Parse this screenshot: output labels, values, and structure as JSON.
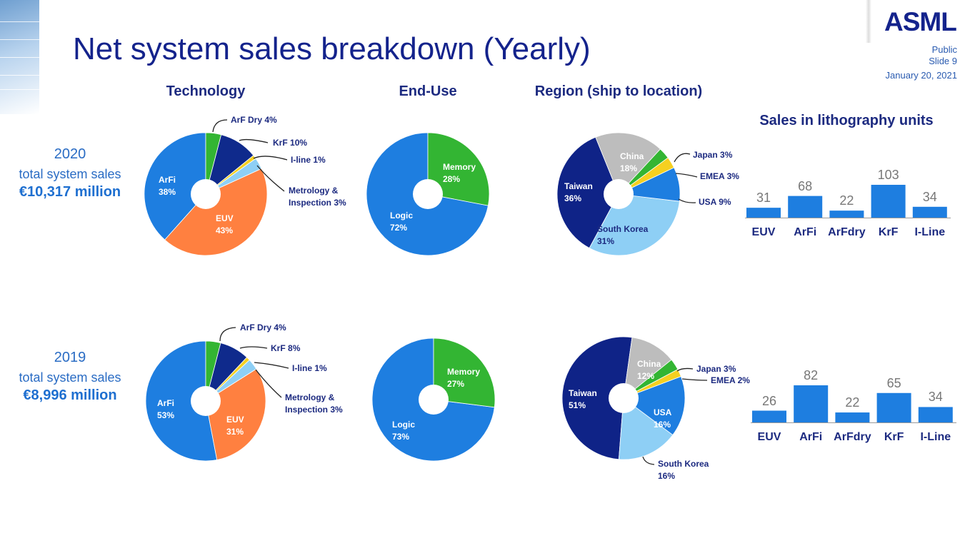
{
  "header": {
    "title": "Net system sales breakdown (Yearly)",
    "logo": "ASML",
    "classification": "Public",
    "slide": "Slide 9",
    "date": "January 20, 2021"
  },
  "section_headers": {
    "technology": "Technology",
    "end_use": "End-Use",
    "region": "Region (ship to location)"
  },
  "years": [
    {
      "year": "2020",
      "caption": "total system sales",
      "amount": "€10,317 million"
    },
    {
      "year": "2019",
      "caption": "total system sales",
      "amount": "€8,996 million"
    }
  ],
  "colors": {
    "title": "#14238c",
    "accent": "#1e6fd0"
  },
  "chart_data": [
    {
      "type": "pie",
      "title": "Technology",
      "year": "2020",
      "start": 0,
      "slices": [
        {
          "label": "ArF Dry",
          "value": 4,
          "color": "#33b533"
        },
        {
          "label": "KrF",
          "value": 10,
          "color": "#0f2a8c"
        },
        {
          "label": "I-line",
          "value": 1,
          "color": "#f5d020"
        },
        {
          "label": "Metrology & Inspection",
          "value": 3,
          "color": "#8ecff5"
        },
        {
          "label": "EUV",
          "value": 43,
          "color": "#ff8040"
        },
        {
          "label": "ArFi",
          "value": 38,
          "color": "#1e7ee0"
        }
      ]
    },
    {
      "type": "pie",
      "title": "End-Use",
      "year": "2020",
      "start": 0,
      "slices": [
        {
          "label": "Memory",
          "value": 28,
          "color": "#33b533"
        },
        {
          "label": "Logic",
          "value": 72,
          "color": "#1e7ee0"
        }
      ]
    },
    {
      "type": "pie",
      "title": "Region (ship to location)",
      "year": "2020",
      "start": -22,
      "slices": [
        {
          "label": "China",
          "value": 18,
          "color": "#bdbdbd"
        },
        {
          "label": "Japan",
          "value": 3,
          "color": "#33b533"
        },
        {
          "label": "EMEA",
          "value": 3,
          "color": "#f5d020"
        },
        {
          "label": "USA",
          "value": 9,
          "color": "#1e7ee0"
        },
        {
          "label": "South Korea",
          "value": 31,
          "color": "#8ecff5"
        },
        {
          "label": "Taiwan",
          "value": 36,
          "color": "#0f2387"
        }
      ]
    },
    {
      "type": "pie",
      "title": "Technology",
      "year": "2019",
      "start": 0,
      "slices": [
        {
          "label": "ArF Dry",
          "value": 4,
          "color": "#33b533"
        },
        {
          "label": "KrF",
          "value": 8,
          "color": "#0f2a8c"
        },
        {
          "label": "I-line",
          "value": 1,
          "color": "#f5d020"
        },
        {
          "label": "Metrology & Inspection",
          "value": 3,
          "color": "#8ecff5"
        },
        {
          "label": "EUV",
          "value": 31,
          "color": "#ff8040"
        },
        {
          "label": "ArFi",
          "value": 53,
          "color": "#1e7ee0"
        }
      ]
    },
    {
      "type": "pie",
      "title": "End-Use",
      "year": "2019",
      "start": 0,
      "slices": [
        {
          "label": "Memory",
          "value": 27,
          "color": "#33b533"
        },
        {
          "label": "Logic",
          "value": 73,
          "color": "#1e7ee0"
        }
      ]
    },
    {
      "type": "pie",
      "title": "Region (ship to location)",
      "year": "2019",
      "start": 8,
      "slices": [
        {
          "label": "China",
          "value": 12,
          "color": "#bdbdbd"
        },
        {
          "label": "Japan",
          "value": 3,
          "color": "#33b533"
        },
        {
          "label": "EMEA",
          "value": 2,
          "color": "#f5d020"
        },
        {
          "label": "USA",
          "value": 16,
          "color": "#1e7ee0"
        },
        {
          "label": "South Korea",
          "value": 16,
          "color": "#8ecff5"
        },
        {
          "label": "Taiwan",
          "value": 51,
          "color": "#0f2387"
        }
      ]
    },
    {
      "type": "bar",
      "title": "Sales in lithography units",
      "year": "2020",
      "categories": [
        "EUV",
        "ArFi",
        "ArFdry",
        "KrF",
        "I-Line"
      ],
      "values": [
        31,
        68,
        22,
        103,
        34
      ],
      "color": "#1e7ee0"
    },
    {
      "type": "bar",
      "title": "Sales in lithography units",
      "year": "2019",
      "categories": [
        "EUV",
        "ArFi",
        "ArFdry",
        "KrF",
        "I-Line"
      ],
      "values": [
        26,
        82,
        22,
        65,
        34
      ],
      "color": "#1e7ee0"
    }
  ]
}
